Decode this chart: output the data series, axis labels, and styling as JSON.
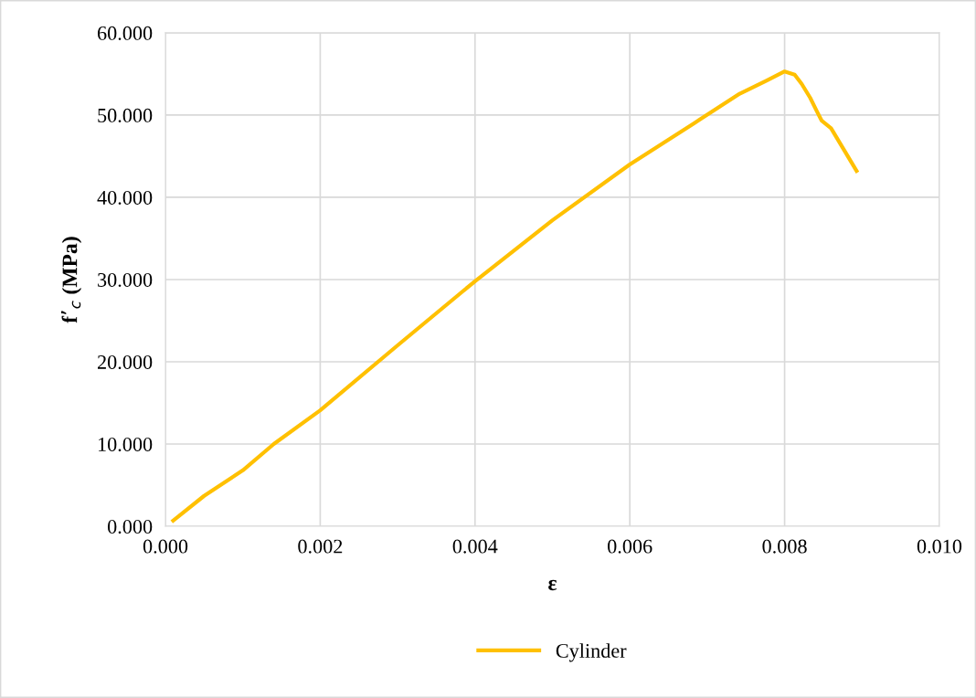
{
  "chart_data": {
    "type": "line",
    "xlabel": "ε",
    "ylabel": "f’$_{c}$ (MPa)",
    "series": [
      {
        "name": "Cylinder",
        "color": "#ffc000",
        "x": [
          0.0001,
          0.0005,
          0.001,
          0.0014,
          0.002,
          0.003,
          0.004,
          0.005,
          0.006,
          0.00683,
          0.00742,
          0.00777,
          0.008,
          0.00813,
          0.00822,
          0.00833,
          0.00842,
          0.00848,
          0.0086,
          0.00893
        ],
        "values": [
          0.7,
          3.7,
          6.8,
          10,
          14.1,
          22,
          29.8,
          37.2,
          44,
          49,
          52.6,
          54.2,
          55.3,
          54.9,
          53.8,
          52.1,
          50.4,
          49.3,
          48.4,
          43.2
        ]
      }
    ],
    "xlim": [
      0,
      0.01
    ],
    "ylim": [
      0,
      60
    ],
    "xticks": [
      {
        "value": 0,
        "label": "0.000"
      },
      {
        "value": 0.002,
        "label": "0.002"
      },
      {
        "value": 0.004,
        "label": "0.004"
      },
      {
        "value": 0.006,
        "label": "0.006"
      },
      {
        "value": 0.008,
        "label": "0.008"
      },
      {
        "value": 0.01,
        "label": "0.010"
      }
    ],
    "yticks": [
      {
        "value": 0,
        "label": "0.000"
      },
      {
        "value": 10,
        "label": "10.000"
      },
      {
        "value": 20,
        "label": "20.000"
      },
      {
        "value": 30,
        "label": "30.000"
      },
      {
        "value": 40,
        "label": "40.000"
      },
      {
        "value": 50,
        "label": "50.000"
      },
      {
        "value": 60,
        "label": "60.000"
      }
    ],
    "grid": true,
    "legend": "bottom",
    "marker": "none",
    "line_style": "solid"
  }
}
